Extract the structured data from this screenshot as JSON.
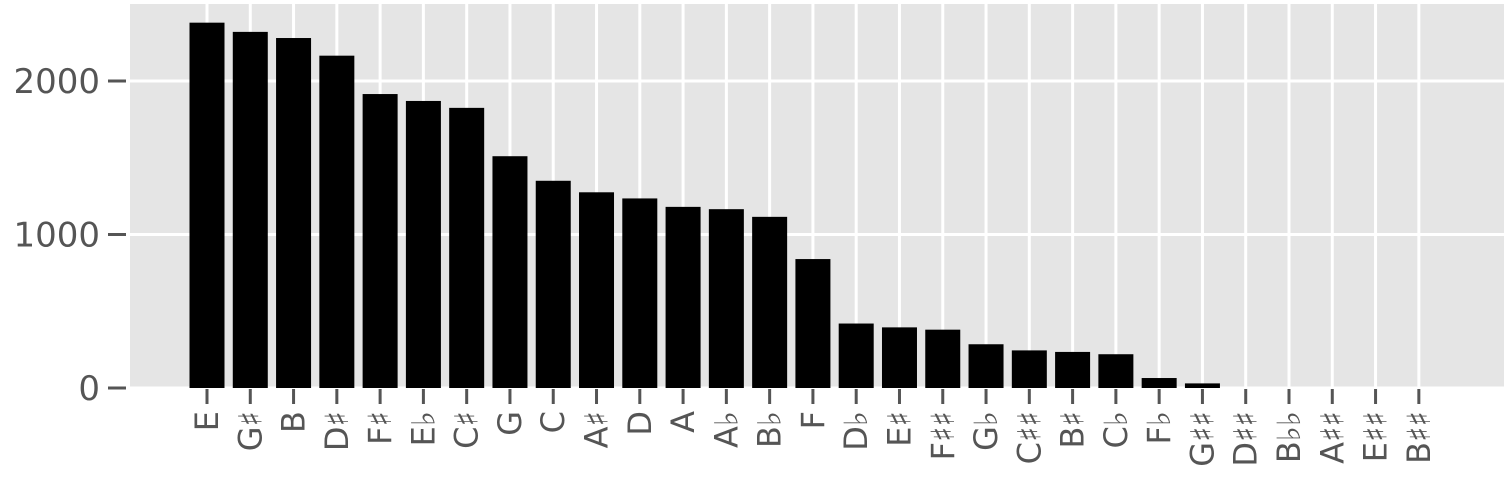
{
  "chart_data": {
    "type": "bar",
    "title": "",
    "xlabel": "",
    "ylabel": "",
    "categories": [
      "E",
      "G♯",
      "B",
      "D♯",
      "F♯",
      "E♭",
      "C♯",
      "G",
      "C",
      "A♯",
      "D",
      "A",
      "A♭",
      "B♭",
      "F",
      "D♭",
      "E♯",
      "F♯♯",
      "G♭",
      "C♯♯",
      "B♯",
      "C♭",
      "F♭",
      "G♯♯",
      "D♯♯",
      "B♭♭",
      "A♯♯",
      "E♯♯",
      "B♯♯"
    ],
    "values": [
      2380,
      2320,
      2280,
      2165,
      1915,
      1870,
      1825,
      1510,
      1350,
      1275,
      1235,
      1180,
      1165,
      1115,
      840,
      420,
      395,
      380,
      285,
      245,
      235,
      220,
      65,
      30,
      0,
      0,
      0,
      0,
      0
    ],
    "yticks": [
      0,
      1000,
      2000
    ],
    "ylim": [
      0,
      2500
    ],
    "grid": true,
    "colors": {
      "bar": "#000000",
      "panel": "#e5e5e5",
      "grid": "#ffffff",
      "tick_text": "#555555",
      "tick_mark": "#555555"
    }
  }
}
